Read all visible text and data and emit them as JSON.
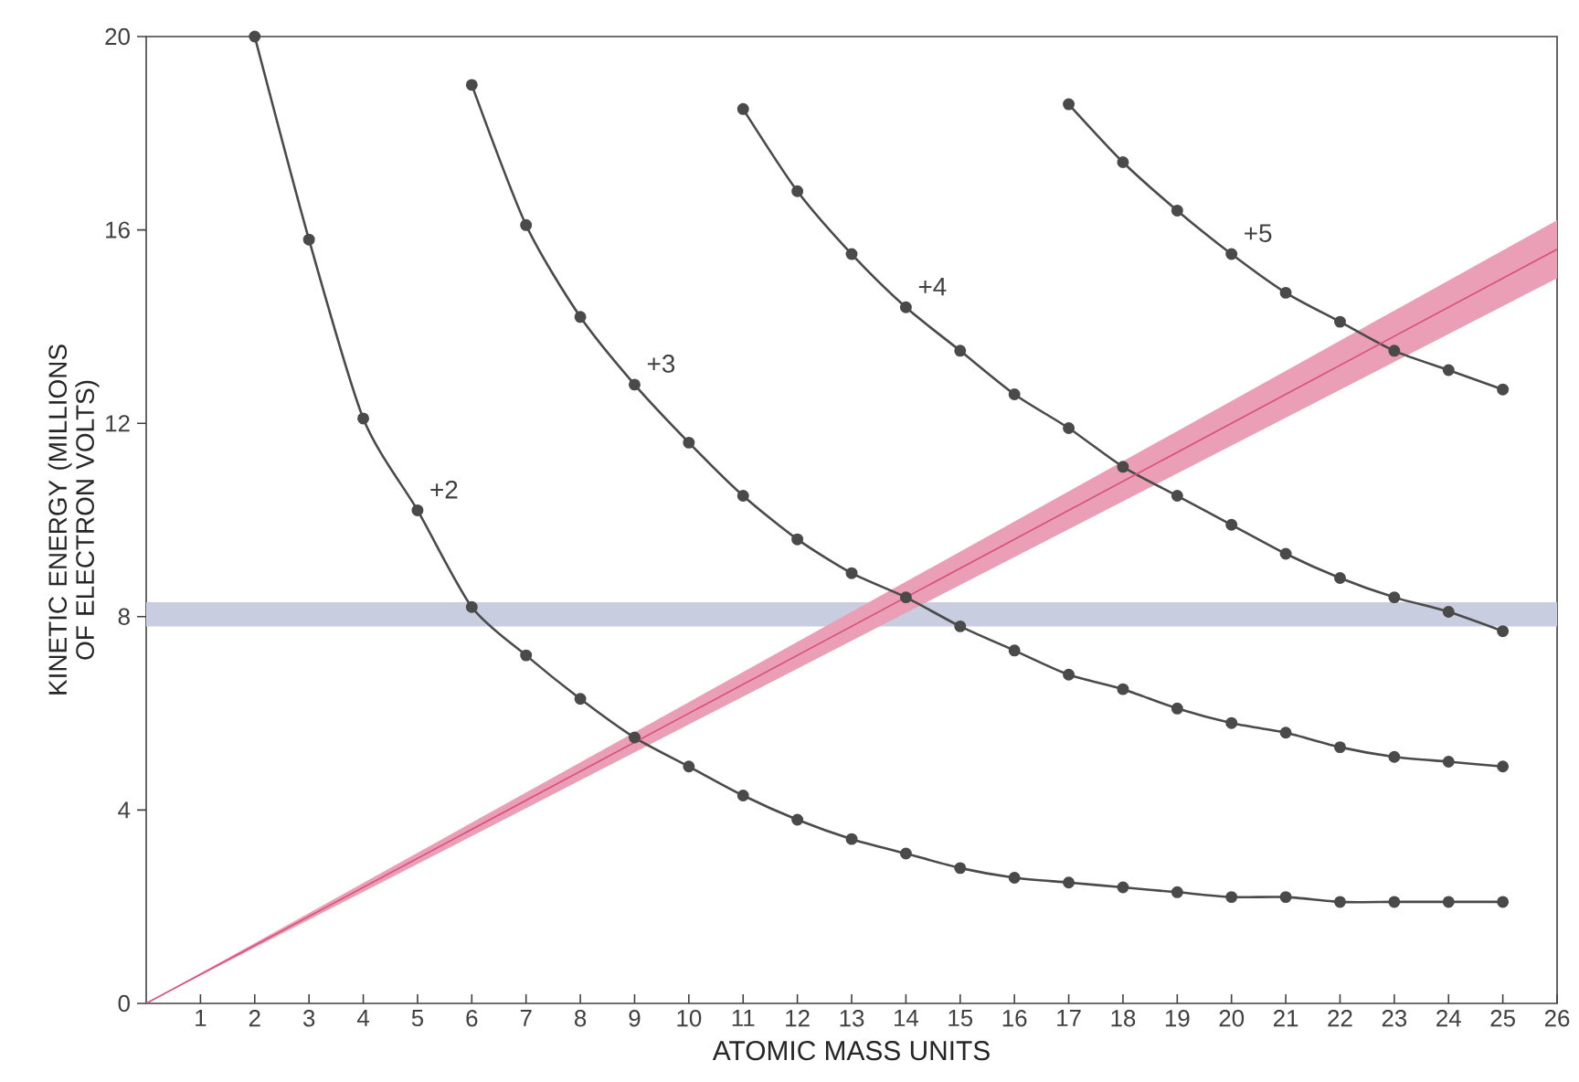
{
  "chart_data": {
    "type": "line",
    "xlabel": "ATOMIC MASS UNITS",
    "ylabel": "KINETIC ENERGY (MILLIONS OF ELECTRON VOLTS)",
    "xlim": [
      0,
      26
    ],
    "ylim": [
      0,
      20
    ],
    "xticks": [
      1,
      2,
      3,
      4,
      5,
      6,
      7,
      8,
      9,
      10,
      11,
      12,
      13,
      14,
      15,
      16,
      17,
      18,
      19,
      20,
      21,
      22,
      23,
      24,
      25,
      26
    ],
    "yticks": [
      0,
      4,
      8,
      12,
      16,
      20
    ],
    "grid": false,
    "marker": "circle",
    "bands": [
      {
        "axis": "y",
        "from": 7.8,
        "to": 8.3,
        "color": "#c9cde0"
      }
    ],
    "series": [
      {
        "name": "+2",
        "color": "#4a4a4a",
        "x": [
          2,
          3,
          4,
          5,
          6,
          7,
          8,
          9,
          10,
          11,
          12,
          13,
          14,
          15,
          16,
          17,
          18,
          19,
          20,
          21,
          22,
          23,
          24,
          25
        ],
        "values": [
          20.0,
          15.8,
          12.1,
          10.2,
          8.2,
          7.2,
          6.3,
          5.5,
          4.9,
          4.3,
          3.8,
          3.4,
          3.1,
          2.8,
          2.6,
          2.5,
          2.4,
          2.3,
          2.2,
          2.2,
          2.1,
          2.1,
          2.1,
          2.1
        ]
      },
      {
        "name": "+3",
        "color": "#4a4a4a",
        "x": [
          6,
          7,
          8,
          9,
          10,
          11,
          12,
          13,
          14,
          15,
          16,
          17,
          18,
          19,
          20,
          21,
          22,
          23,
          24,
          25
        ],
        "values": [
          19.0,
          16.1,
          14.2,
          12.8,
          11.6,
          10.5,
          9.6,
          8.9,
          8.4,
          7.8,
          7.3,
          6.8,
          6.5,
          6.1,
          5.8,
          5.6,
          5.3,
          5.1,
          5.0,
          4.9
        ]
      },
      {
        "name": "+4",
        "color": "#4a4a4a",
        "x": [
          11,
          12,
          13,
          14,
          15,
          16,
          17,
          18,
          19,
          20,
          21,
          22,
          23,
          24,
          25
        ],
        "values": [
          18.5,
          16.8,
          15.5,
          14.4,
          13.5,
          12.6,
          11.9,
          11.1,
          10.5,
          9.9,
          9.3,
          8.8,
          8.4,
          8.1,
          7.7
        ]
      },
      {
        "name": "+5",
        "color": "#4a4a4a",
        "x": [
          17,
          18,
          19,
          20,
          21,
          22,
          23,
          24,
          25
        ],
        "values": [
          18.6,
          17.4,
          16.4,
          15.5,
          14.7,
          14.1,
          13.5,
          13.1,
          12.7
        ]
      },
      {
        "color": "#d9507c",
        "marker": "none",
        "x": [
          0,
          26
        ],
        "values": [
          0,
          15.6
        ],
        "lower": [
          0,
          15.0
        ],
        "upper": [
          0,
          16.2
        ]
      }
    ]
  }
}
